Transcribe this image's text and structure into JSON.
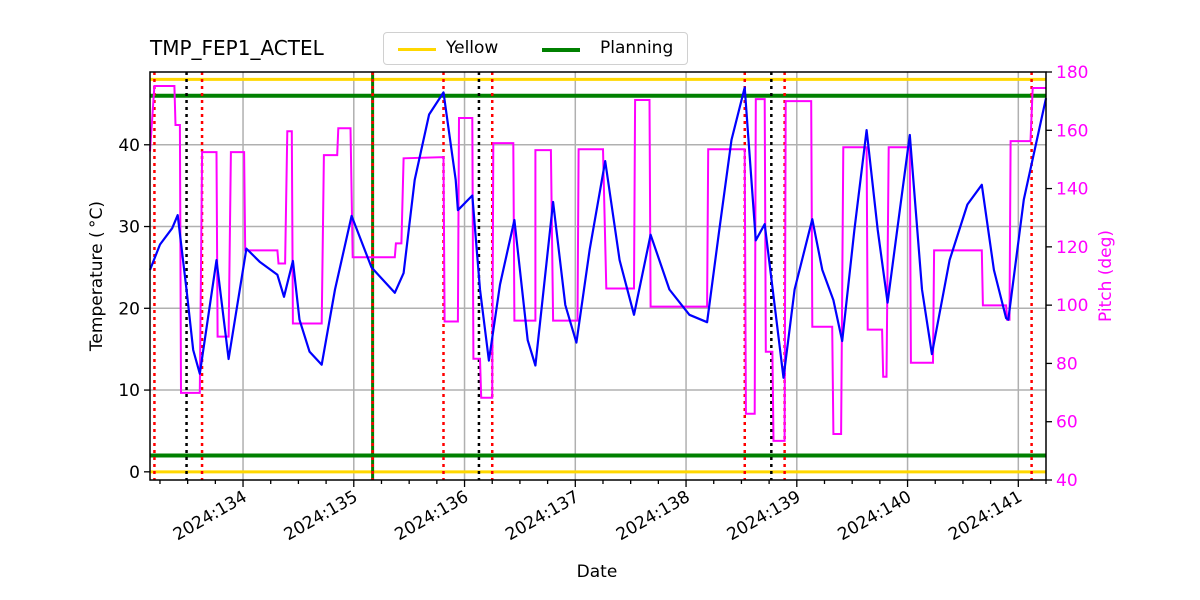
{
  "chart_data": {
    "type": "line",
    "title": "TMP_FEP1_ACTEL",
    "xlabel": "Date",
    "ylabel": "Temperature ($^\\circ$C)",
    "ylabel_display": "Temperature ( °C)",
    "y2label": "Pitch (deg)",
    "xlim": [
      133.16,
      141.25
    ],
    "ylim": [
      -1.0,
      48.9
    ],
    "y2lim": [
      40,
      180
    ],
    "grid": true,
    "legend_position": "upper center (above axes)",
    "x_ticks": [
      {
        "value": 134,
        "label": "2024:134"
      },
      {
        "value": 135,
        "label": "2024:135"
      },
      {
        "value": 136,
        "label": "2024:136"
      },
      {
        "value": 137,
        "label": "2024:137"
      },
      {
        "value": 138,
        "label": "2024:138"
      },
      {
        "value": 139,
        "label": "2024:139"
      },
      {
        "value": 140,
        "label": "2024:140"
      },
      {
        "value": 141,
        "label": "2024:141"
      }
    ],
    "y_ticks": [
      0,
      10,
      20,
      30,
      40
    ],
    "y2_ticks": [
      40,
      60,
      80,
      100,
      120,
      140,
      160,
      180
    ],
    "legend": [
      {
        "label": "Yellow",
        "color": "#ffd700"
      },
      {
        "label": "Planning",
        "color": "#008000"
      }
    ],
    "limit_lines": [
      {
        "name": "Yellow",
        "values": [
          0,
          48
        ],
        "color": "#ffd700"
      },
      {
        "name": "Planning",
        "values": [
          2,
          46
        ],
        "color": "#008000"
      }
    ],
    "vertical_markers": {
      "red_dotted": [
        133.2,
        133.63,
        135.17,
        135.81,
        136.25,
        138.53,
        138.89,
        141.12
      ],
      "black_dotted": [
        133.49,
        136.13,
        138.77
      ],
      "green_solid": [
        135.17
      ]
    },
    "series": [
      {
        "name": "TMP_FEP1_ACTEL",
        "axis": "left",
        "color": "#0000ff",
        "x": [
          133.16,
          133.25,
          133.36,
          133.41,
          133.49,
          133.55,
          133.61,
          133.76,
          133.87,
          134.03,
          134.15,
          134.31,
          134.37,
          134.45,
          134.51,
          134.6,
          134.71,
          134.83,
          134.98,
          135.16,
          135.37,
          135.45,
          135.55,
          135.68,
          135.81,
          135.92,
          135.94,
          136.07,
          136.14,
          136.22,
          136.32,
          136.45,
          136.57,
          136.64,
          136.8,
          136.91,
          137.01,
          137.13,
          137.27,
          137.4,
          137.53,
          137.68,
          137.85,
          138.03,
          138.19,
          138.3,
          138.41,
          138.53,
          138.63,
          138.71,
          138.88,
          138.98,
          139.14,
          139.23,
          139.33,
          139.41,
          139.52,
          139.63,
          139.73,
          139.82,
          139.93,
          140.02,
          140.13,
          140.22,
          140.38,
          140.54,
          140.67,
          140.78,
          140.89,
          140.91,
          141.05,
          141.25
        ],
        "values": [
          24.7,
          27.8,
          29.8,
          31.4,
          22.3,
          14.9,
          12.0,
          25.9,
          13.8,
          27.3,
          25.7,
          24.1,
          21.4,
          25.8,
          18.6,
          14.7,
          13.1,
          22.3,
          31.3,
          25.0,
          21.9,
          24.3,
          35.7,
          43.7,
          46.4,
          35.7,
          32.0,
          33.8,
          22.3,
          13.6,
          22.9,
          30.8,
          16.1,
          13.0,
          33.0,
          20.4,
          15.8,
          27.2,
          38.0,
          25.9,
          19.2,
          29.0,
          22.3,
          19.2,
          18.3,
          29.6,
          40.6,
          47.0,
          28.3,
          30.3,
          11.5,
          22.3,
          30.9,
          24.7,
          21.0,
          16.0,
          29.6,
          41.8,
          29.6,
          20.7,
          32.0,
          41.2,
          22.3,
          14.4,
          25.9,
          32.7,
          35.1,
          24.7,
          18.8,
          18.6,
          33.3,
          45.7
        ]
      },
      {
        "name": "Pitch",
        "axis": "right",
        "color": "#ff00ff",
        "x": [
          133.16,
          133.2,
          133.38,
          133.39,
          133.43,
          133.44,
          133.61,
          133.63,
          133.76,
          133.77,
          133.87,
          133.89,
          134.01,
          134.02,
          134.31,
          134.32,
          134.38,
          134.4,
          134.44,
          134.45,
          134.71,
          134.73,
          134.85,
          134.86,
          134.97,
          134.99,
          135.37,
          135.38,
          135.43,
          135.45,
          135.81,
          135.82,
          135.94,
          135.95,
          136.07,
          136.08,
          136.14,
          136.15,
          136.25,
          136.26,
          136.44,
          136.45,
          136.64,
          136.64,
          136.78,
          136.8,
          137.02,
          137.03,
          137.25,
          137.28,
          137.53,
          137.54,
          137.67,
          137.68,
          138.19,
          138.2,
          138.53,
          138.54,
          138.62,
          138.63,
          138.71,
          138.72,
          138.78,
          138.79,
          138.89,
          138.9,
          139.13,
          139.14,
          139.32,
          139.33,
          139.4,
          139.42,
          139.63,
          139.64,
          139.77,
          139.78,
          139.81,
          139.83,
          140.02,
          140.03,
          140.23,
          140.24,
          140.67,
          140.68,
          140.89,
          140.9,
          140.92,
          140.93,
          141.11,
          141.13,
          141.25
        ],
        "values": [
          152.8,
          175.2,
          175.2,
          161.8,
          161.8,
          69.9,
          69.9,
          152.5,
          152.5,
          89.2,
          89.2,
          152.5,
          152.5,
          118.8,
          118.8,
          114.3,
          114.3,
          159.7,
          159.7,
          93.7,
          93.7,
          151.5,
          151.5,
          160.7,
          160.7,
          116.4,
          116.4,
          121.2,
          121.2,
          150.4,
          150.8,
          94.4,
          94.4,
          164.2,
          164.2,
          81.6,
          81.6,
          68.2,
          68.2,
          155.6,
          155.6,
          94.7,
          94.7,
          153.2,
          153.2,
          94.7,
          94.7,
          153.5,
          153.5,
          105.7,
          105.7,
          170.4,
          170.4,
          99.5,
          99.5,
          153.5,
          153.5,
          62.7,
          62.7,
          170.7,
          170.7,
          84.0,
          84.0,
          53.4,
          53.4,
          170.0,
          170.0,
          92.6,
          92.6,
          55.8,
          55.8,
          154.2,
          154.2,
          91.6,
          91.6,
          75.4,
          75.4,
          154.2,
          154.2,
          80.2,
          80.2,
          118.8,
          118.8,
          99.9,
          99.9,
          95.0,
          95.0,
          156.3,
          156.3,
          174.5,
          174.5
        ]
      }
    ]
  },
  "colors": {
    "temperature": "#0000ff",
    "pitch": "#ff00ff",
    "yellow_limit": "#ffd700",
    "planning_limit": "#008000",
    "red_marker": "#ff0000",
    "black_marker": "#000000",
    "grid": "#b0b0b0"
  }
}
